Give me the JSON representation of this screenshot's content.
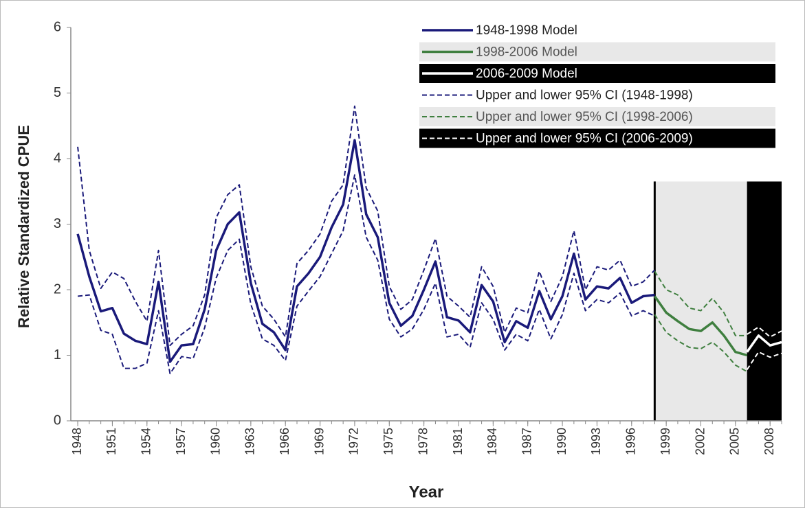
{
  "chart_data": {
    "type": "line",
    "x_label": "Year",
    "y_label": "Relative Standardized CPUE",
    "xlim": [
      1947.4,
      2009
    ],
    "ylim": [
      0,
      6
    ],
    "yticks": [
      0,
      1,
      2,
      3,
      4,
      5,
      6
    ],
    "xticks": [
      1948,
      1951,
      1954,
      1957,
      1960,
      1963,
      1966,
      1969,
      1972,
      1975,
      1978,
      1981,
      1984,
      1987,
      1990,
      1993,
      1996,
      1999,
      2002,
      2005,
      2008
    ],
    "grid": false,
    "legend": "upper right",
    "shaded_periods": [
      {
        "from": 1998,
        "to": 2006,
        "top": 3.65,
        "color": "#e8e8e8"
      },
      {
        "from": 2006,
        "to": 2009,
        "top": 3.65,
        "color": "#000000"
      }
    ],
    "divider_x": 1998,
    "series": [
      {
        "name": "1948-1998 Model",
        "color": "#1a1a7a",
        "dash": false,
        "legend_background": "#ffffff",
        "legend_text_color": "#222222",
        "x": [
          1948,
          1949,
          1950,
          1951,
          1952,
          1953,
          1954,
          1955,
          1956,
          1957,
          1958,
          1959,
          1960,
          1961,
          1962,
          1963,
          1964,
          1965,
          1966,
          1967,
          1968,
          1969,
          1970,
          1971,
          1972,
          1973,
          1974,
          1975,
          1976,
          1977,
          1978,
          1979,
          1980,
          1981,
          1982,
          1983,
          1984,
          1985,
          1986,
          1987,
          1988,
          1989,
          1990,
          1991,
          1992,
          1993,
          1994,
          1995,
          1996,
          1997,
          1998
        ],
        "values": [
          2.85,
          2.2,
          1.67,
          1.72,
          1.33,
          1.22,
          1.17,
          2.12,
          0.9,
          1.15,
          1.17,
          1.7,
          2.6,
          3.0,
          3.18,
          2.1,
          1.48,
          1.35,
          1.08,
          2.05,
          2.25,
          2.5,
          2.95,
          3.3,
          4.28,
          3.15,
          2.8,
          1.8,
          1.45,
          1.6,
          2.0,
          2.43,
          1.58,
          1.53,
          1.35,
          2.07,
          1.82,
          1.2,
          1.52,
          1.42,
          1.98,
          1.55,
          1.9,
          2.55,
          1.85,
          2.05,
          2.02,
          2.18,
          1.8,
          1.9,
          1.92
        ]
      },
      {
        "name": "1998-2006 Model",
        "color": "#3f7f3f",
        "dash": false,
        "legend_background": "#e8e8e8",
        "legend_text_color": "#555555",
        "x": [
          1998,
          1999,
          2000,
          2001,
          2002,
          2003,
          2004,
          2005,
          2006
        ],
        "values": [
          1.9,
          1.65,
          1.52,
          1.4,
          1.37,
          1.5,
          1.3,
          1.05,
          1.0
        ]
      },
      {
        "name": "2006-2009 Model",
        "color": "#ffffff",
        "dash": false,
        "legend_background": "#000000",
        "legend_text_color": "#ffffff",
        "x": [
          2006,
          2007,
          2008,
          2009
        ],
        "values": [
          1.05,
          1.3,
          1.15,
          1.2
        ]
      },
      {
        "name": "Upper and lower 95% CI (1948-1998)",
        "color": "#1a1a7a",
        "dash": true,
        "legend_background": "#ffffff",
        "legend_text_color": "#222222",
        "x": [
          1948,
          1949,
          1950,
          1951,
          1952,
          1953,
          1954,
          1955,
          1956,
          1957,
          1958,
          1959,
          1960,
          1961,
          1962,
          1963,
          1964,
          1965,
          1966,
          1967,
          1968,
          1969,
          1970,
          1971,
          1972,
          1973,
          1974,
          1975,
          1976,
          1977,
          1978,
          1979,
          1980,
          1981,
          1982,
          1983,
          1984,
          1985,
          1986,
          1987,
          1988,
          1989,
          1990,
          1991,
          1992,
          1993,
          1994,
          1995,
          1996,
          1997,
          1998
        ],
        "upper": [
          4.18,
          2.6,
          2.02,
          2.27,
          2.17,
          1.82,
          1.52,
          2.6,
          1.15,
          1.32,
          1.45,
          1.92,
          3.1,
          3.45,
          3.6,
          2.35,
          1.75,
          1.55,
          1.28,
          2.4,
          2.6,
          2.85,
          3.35,
          3.6,
          4.8,
          3.55,
          3.2,
          2.05,
          1.7,
          1.85,
          2.3,
          2.78,
          1.9,
          1.75,
          1.58,
          2.35,
          2.05,
          1.35,
          1.72,
          1.65,
          2.28,
          1.82,
          2.2,
          2.9,
          2.0,
          2.35,
          2.3,
          2.45,
          2.05,
          2.12,
          2.3
        ],
        "lower": [
          1.9,
          1.92,
          1.38,
          1.32,
          0.8,
          0.8,
          0.88,
          1.68,
          0.72,
          0.98,
          0.95,
          1.42,
          2.18,
          2.6,
          2.77,
          1.78,
          1.25,
          1.15,
          0.92,
          1.75,
          1.98,
          2.2,
          2.55,
          2.9,
          3.75,
          2.8,
          2.45,
          1.55,
          1.28,
          1.4,
          1.7,
          2.1,
          1.28,
          1.32,
          1.12,
          1.8,
          1.55,
          1.08,
          1.32,
          1.22,
          1.7,
          1.25,
          1.62,
          2.25,
          1.68,
          1.85,
          1.8,
          1.95,
          1.6,
          1.68,
          1.6
        ]
      },
      {
        "name": "Upper and lower 95% CI (1998-2006)",
        "color": "#3f7f3f",
        "dash": true,
        "legend_background": "#e8e8e8",
        "legend_text_color": "#555555",
        "x": [
          1998,
          1999,
          2000,
          2001,
          2002,
          2003,
          2004,
          2005,
          2006
        ],
        "upper": [
          2.28,
          2.0,
          1.92,
          1.72,
          1.68,
          1.87,
          1.65,
          1.3,
          1.3
        ],
        "lower": [
          1.62,
          1.35,
          1.22,
          1.12,
          1.1,
          1.2,
          1.05,
          0.85,
          0.75
        ]
      },
      {
        "name": "Upper and lower 95% CI (2006-2009)",
        "color": "#ffffff",
        "dash": true,
        "legend_background": "#000000",
        "legend_text_color": "#ffffff",
        "x": [
          2006,
          2007,
          2008,
          2009
        ],
        "upper": [
          1.32,
          1.43,
          1.28,
          1.37
        ],
        "lower": [
          0.78,
          1.05,
          0.97,
          1.03
        ]
      }
    ]
  }
}
